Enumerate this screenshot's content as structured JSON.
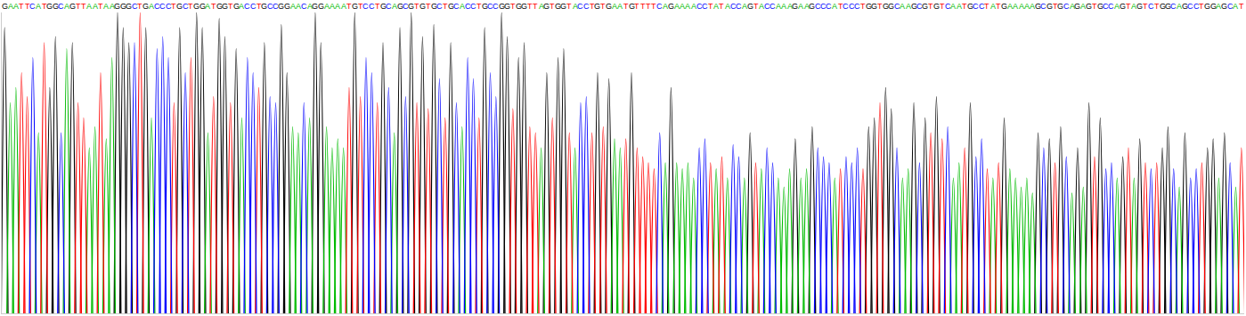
{
  "chart_data": {
    "type": "line",
    "categories": [
      "G",
      "A",
      "A",
      "T",
      "T",
      "C",
      "A",
      "T",
      "G",
      "G",
      "C",
      "A",
      "G",
      "T",
      "T",
      "A",
      "A",
      "T",
      "A",
      "A",
      "G",
      "G",
      "G",
      "C",
      "T",
      "G",
      "A",
      "C",
      "C",
      "C",
      "T",
      "G",
      "C",
      "T",
      "G",
      "G",
      "A",
      "T",
      "G",
      "G",
      "T",
      "G",
      "A",
      "C",
      "C",
      "T",
      "G",
      "C",
      "C",
      "G",
      "G",
      "A",
      "A",
      "C",
      "A",
      "G",
      "G",
      "A",
      "A",
      "A",
      "A",
      "T",
      "G",
      "T",
      "C",
      "C",
      "T",
      "G",
      "C",
      "A",
      "G",
      "C",
      "G",
      "T",
      "G",
      "T",
      "G",
      "C",
      "T",
      "G",
      "C",
      "A",
      "C",
      "C",
      "T",
      "G",
      "C",
      "C",
      "G",
      "G",
      "T",
      "G",
      "G",
      "T",
      "T",
      "A",
      "G",
      "T",
      "G",
      "G",
      "T",
      "A",
      "C",
      "C",
      "T",
      "G",
      "T",
      "G",
      "A",
      "A",
      "T",
      "G",
      "T",
      "T",
      "T",
      "T",
      "C",
      "A",
      "G",
      "A",
      "A",
      "A",
      "A",
      "C",
      "C",
      "T",
      "A",
      "T",
      "A",
      "C",
      "C",
      "A",
      "G",
      "T",
      "A",
      "C",
      "C",
      "A",
      "A",
      "A",
      "G",
      "A",
      "A",
      "G",
      "C",
      "C",
      "C",
      "A",
      "T",
      "C",
      "C",
      "C",
      "T",
      "G",
      "G",
      "T",
      "G",
      "G",
      "C",
      "A",
      "A",
      "G",
      "C",
      "G",
      "T",
      "G",
      "T",
      "C",
      "A",
      "A",
      "T",
      "G",
      "C",
      "C",
      "T",
      "A",
      "T",
      "G",
      "A",
      "A",
      "A",
      "A",
      "A",
      "G",
      "C",
      "G",
      "T",
      "G",
      "C",
      "A",
      "G",
      "A",
      "G",
      "T",
      "G",
      "C",
      "C",
      "A",
      "G",
      "T",
      "A",
      "G",
      "T",
      "C",
      "T",
      "G",
      "G",
      "C",
      "A",
      "G",
      "C",
      "C",
      "T",
      "G",
      "G",
      "A",
      "G",
      "C",
      "A",
      "T"
    ],
    "values": [
      95,
      70,
      75,
      80,
      72,
      85,
      60,
      90,
      75,
      92,
      60,
      88,
      90,
      70,
      65,
      55,
      62,
      80,
      58,
      85,
      100,
      95,
      90,
      90,
      100,
      95,
      65,
      88,
      92,
      85,
      70,
      95,
      80,
      85,
      100,
      95,
      60,
      72,
      98,
      92,
      70,
      88,
      65,
      85,
      80,
      75,
      90,
      72,
      70,
      96,
      80,
      62,
      60,
      70,
      65,
      100,
      90,
      62,
      55,
      58,
      55,
      75,
      100,
      72,
      85,
      80,
      70,
      90,
      75,
      60,
      95,
      72,
      100,
      70,
      92,
      68,
      96,
      78,
      65,
      90,
      70,
      62,
      85,
      78,
      65,
      95,
      80,
      72,
      100,
      92,
      68,
      85,
      90,
      62,
      60,
      55,
      80,
      65,
      85,
      88,
      60,
      55,
      70,
      72,
      60,
      80,
      62,
      78,
      58,
      55,
      58,
      80,
      55,
      52,
      50,
      48,
      60,
      50,
      75,
      50,
      48,
      50,
      45,
      55,
      58,
      50,
      48,
      52,
      45,
      56,
      52,
      45,
      60,
      50,
      48,
      55,
      50,
      45,
      42,
      48,
      58,
      45,
      48,
      62,
      55,
      52,
      50,
      45,
      48,
      52,
      50,
      55,
      48,
      62,
      65,
      70,
      75,
      68,
      55,
      45,
      48,
      70,
      50,
      65,
      60,
      72,
      58,
      62,
      45,
      50,
      55,
      70,
      52,
      58,
      48,
      45,
      50,
      65,
      48,
      45,
      42,
      45,
      40,
      60,
      55,
      58,
      50,
      62,
      52,
      40,
      55,
      42,
      70,
      52,
      65,
      48,
      50,
      45,
      52,
      55,
      45,
      58,
      50,
      48,
      50,
      55,
      62,
      48,
      42,
      60,
      45,
      48,
      50,
      55,
      58,
      45,
      60,
      50,
      42,
      55
    ],
    "colors": [
      "#000",
      "#0b0",
      "#0b0",
      "#f00",
      "#f00",
      "#00f",
      "#0b0",
      "#f00",
      "#000",
      "#000",
      "#00f",
      "#0b0",
      "#000",
      "#f00",
      "#f00",
      "#0b0",
      "#0b0",
      "#f00",
      "#0b0",
      "#0b0",
      "#000",
      "#000",
      "#000",
      "#00f",
      "#f00",
      "#000",
      "#0b0",
      "#00f",
      "#00f",
      "#00f",
      "#f00",
      "#000",
      "#00f",
      "#f00",
      "#000",
      "#000",
      "#0b0",
      "#f00",
      "#000",
      "#000",
      "#f00",
      "#000",
      "#0b0",
      "#00f",
      "#00f",
      "#f00",
      "#000",
      "#00f",
      "#00f",
      "#000",
      "#000",
      "#0b0",
      "#0b0",
      "#00f",
      "#0b0",
      "#000",
      "#000",
      "#0b0",
      "#0b0",
      "#0b0",
      "#0b0",
      "#f00",
      "#000",
      "#f00",
      "#00f",
      "#00f",
      "#f00",
      "#000",
      "#00f",
      "#0b0",
      "#000",
      "#00f",
      "#000",
      "#f00",
      "#000",
      "#f00",
      "#000",
      "#00f",
      "#f00",
      "#000",
      "#00f",
      "#0b0",
      "#00f",
      "#00f",
      "#f00",
      "#000",
      "#00f",
      "#00f",
      "#000",
      "#000",
      "#f00",
      "#000",
      "#000",
      "#f00",
      "#f00",
      "#0b0",
      "#000",
      "#f00",
      "#000",
      "#000",
      "#f00",
      "#0b0",
      "#00f",
      "#00f",
      "#f00",
      "#000",
      "#f00",
      "#000",
      "#0b0",
      "#0b0",
      "#f00",
      "#000",
      "#f00",
      "#f00",
      "#f00",
      "#f00",
      "#00f",
      "#0b0",
      "#000",
      "#0b0",
      "#0b0",
      "#0b0",
      "#0b0",
      "#00f",
      "#00f",
      "#f00",
      "#0b0",
      "#f00",
      "#0b0",
      "#00f",
      "#00f",
      "#0b0",
      "#000",
      "#f00",
      "#0b0",
      "#00f",
      "#00f",
      "#0b0",
      "#0b0",
      "#0b0",
      "#000",
      "#0b0",
      "#0b0",
      "#000",
      "#00f",
      "#00f",
      "#00f",
      "#0b0",
      "#f00",
      "#00f",
      "#00f",
      "#00f",
      "#f00",
      "#000",
      "#000",
      "#f00",
      "#000",
      "#000",
      "#00f",
      "#0b0",
      "#0b0",
      "#000",
      "#00f",
      "#000",
      "#f00",
      "#000",
      "#f00",
      "#00f",
      "#0b0",
      "#0b0",
      "#f00",
      "#000",
      "#00f",
      "#00f",
      "#f00",
      "#0b0",
      "#f00",
      "#000",
      "#0b0",
      "#0b0",
      "#0b0",
      "#0b0",
      "#0b0",
      "#000",
      "#00f",
      "#000",
      "#f00",
      "#000",
      "#00f",
      "#0b0",
      "#000",
      "#0b0",
      "#000",
      "#f00",
      "#000",
      "#00f",
      "#00f",
      "#0b0",
      "#000",
      "#f00",
      "#0b0",
      "#000",
      "#f00",
      "#00f",
      "#f00",
      "#000",
      "#000",
      "#00f",
      "#0b0",
      "#000",
      "#00f",
      "#00f",
      "#f00",
      "#000",
      "#000",
      "#0b0",
      "#000",
      "#00f",
      "#0b0",
      "#f00"
    ],
    "ylim": [
      0,
      100
    ],
    "tick_labels": false,
    "grid": false
  }
}
